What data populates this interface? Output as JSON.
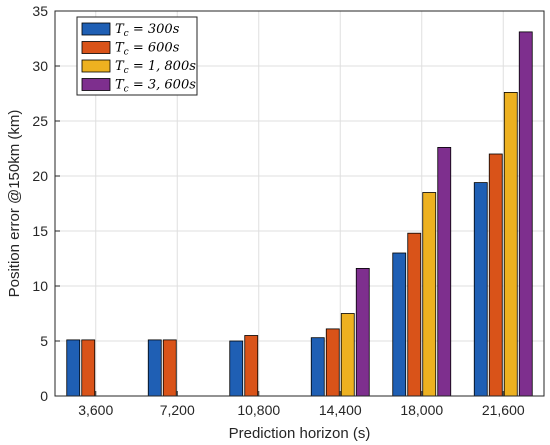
{
  "chart_data": {
    "type": "bar",
    "xlabel": "Prediction horizon (s)",
    "ylabel": "Position error @150km (km)",
    "ylim": [
      0,
      35
    ],
    "yticks": [
      0,
      5,
      10,
      15,
      20,
      25,
      30,
      35
    ],
    "categories": [
      "3,600",
      "7,200",
      "10,800",
      "14,400",
      "18,000",
      "21,600"
    ],
    "grid": true,
    "legend_position": "top-left",
    "series": [
      {
        "name": "Tc = 300s",
        "legend_main": "T",
        "legend_sub": "c",
        "legend_rest": " = 300s",
        "color": "#1f5fb4",
        "values": [
          5.1,
          5.1,
          5.0,
          5.3,
          13.0,
          19.4
        ]
      },
      {
        "name": "Tc = 600s",
        "legend_main": "T",
        "legend_sub": "c",
        "legend_rest": " = 600s",
        "color": "#d95319",
        "values": [
          5.1,
          5.1,
          5.5,
          6.1,
          14.8,
          22.0
        ]
      },
      {
        "name": "Tc = 1,800s",
        "legend_main": "T",
        "legend_sub": "c",
        "legend_rest": " = 1, 800s",
        "color": "#edb120",
        "values": [
          null,
          null,
          null,
          7.5,
          18.5,
          27.6
        ]
      },
      {
        "name": "Tc = 3,600s",
        "legend_main": "T",
        "legend_sub": "c",
        "legend_rest": " = 3, 600s",
        "color": "#7e2f8e",
        "values": [
          null,
          null,
          null,
          11.6,
          22.6,
          33.1
        ]
      }
    ]
  }
}
